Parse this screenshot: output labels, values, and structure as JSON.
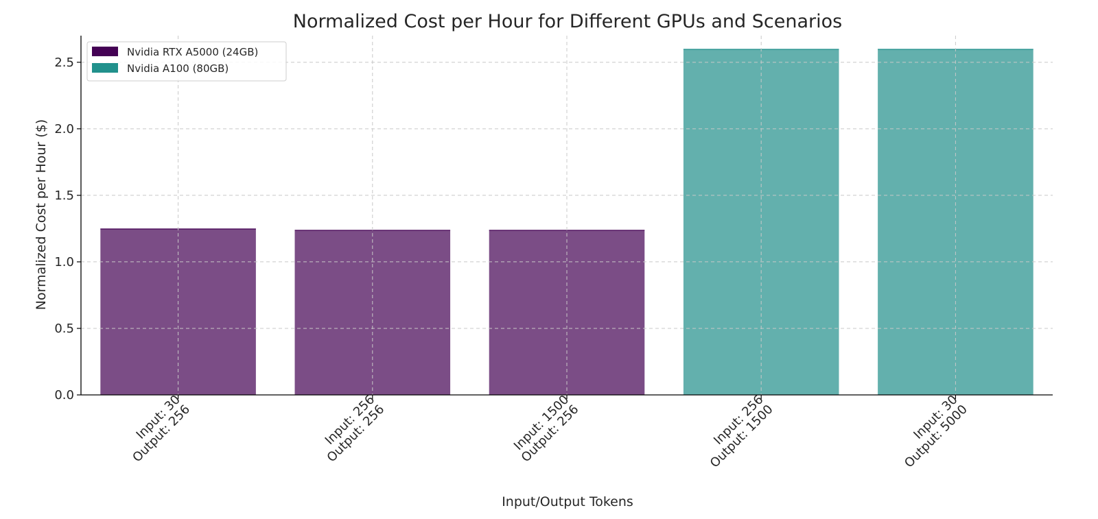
{
  "chart_data": {
    "type": "bar",
    "title": "Normalized Cost per Hour for Different GPUs and Scenarios",
    "xlabel": "Input/Output Tokens",
    "ylabel": "Normalized Cost per Hour ($)",
    "ylim": [
      0,
      2.7
    ],
    "yticks": [
      0.0,
      0.5,
      1.0,
      1.5,
      2.0,
      2.5
    ],
    "ytick_labels": [
      "0.0",
      "0.5",
      "1.0",
      "1.5",
      "2.0",
      "2.5"
    ],
    "grid": true,
    "legend_position": "top-left",
    "categories": [
      [
        "Input: 30",
        "Output: 256"
      ],
      [
        "Input: 256",
        "Output: 256"
      ],
      [
        "Input: 1500",
        "Output: 256"
      ],
      [
        "Input: 256",
        "Output: 1500"
      ],
      [
        "Input: 30",
        "Output: 5000"
      ]
    ],
    "values": [
      1.25,
      1.24,
      1.24,
      2.6,
      2.6
    ],
    "bar_series": [
      0,
      0,
      0,
      1,
      1
    ],
    "series": [
      {
        "name": "Nvidia RTX A5000 (24GB)",
        "color": "#440154",
        "bar_color": "#7b4d86"
      },
      {
        "name": "Nvidia  A100 (80GB)",
        "color": "#21918c",
        "bar_color": "#63b0ad"
      }
    ]
  }
}
